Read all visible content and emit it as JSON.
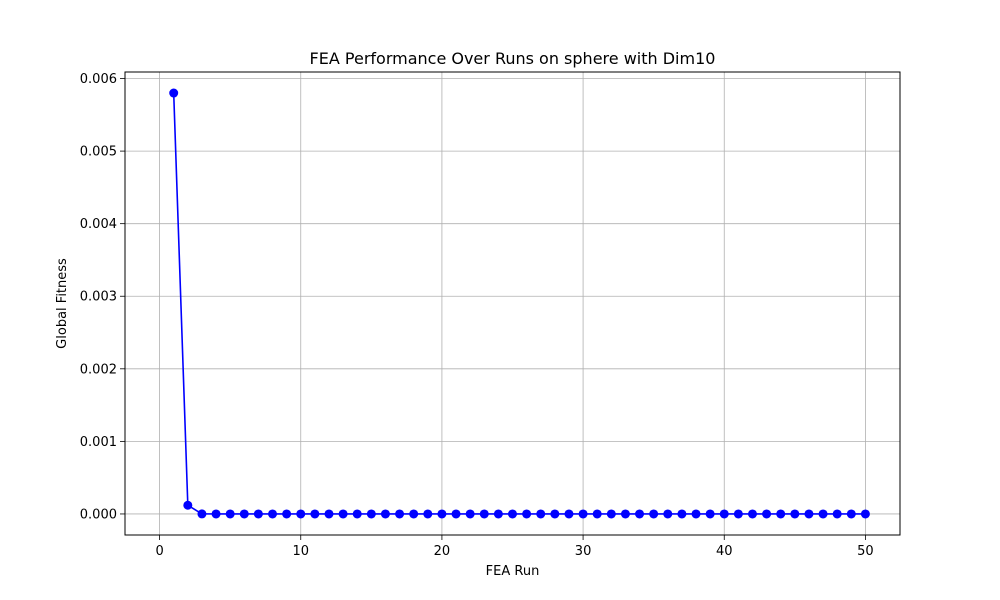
{
  "chart_data": {
    "type": "line",
    "title": "FEA Performance Over Runs on sphere with Dim10",
    "xlabel": "FEA Run",
    "ylabel": "Global Fitness",
    "xlim": [
      -2.45,
      52.45
    ],
    "ylim": [
      -0.00029,
      0.00609
    ],
    "x_ticks": [
      0,
      10,
      20,
      30,
      40,
      50
    ],
    "x_tick_labels": [
      "0",
      "10",
      "20",
      "30",
      "40",
      "50"
    ],
    "y_ticks": [
      0.0,
      0.001,
      0.002,
      0.003,
      0.004,
      0.005,
      0.006
    ],
    "y_tick_labels": [
      "0.000",
      "0.001",
      "0.002",
      "0.003",
      "0.004",
      "0.005",
      "0.006"
    ],
    "grid": true,
    "marker": "circle",
    "line_color": "#0000ff",
    "series": [
      {
        "x": [
          1,
          2,
          3,
          4,
          5,
          6,
          7,
          8,
          9,
          10,
          11,
          12,
          13,
          14,
          15,
          16,
          17,
          18,
          19,
          20,
          21,
          22,
          23,
          24,
          25,
          26,
          27,
          28,
          29,
          30,
          31,
          32,
          33,
          34,
          35,
          36,
          37,
          38,
          39,
          40,
          41,
          42,
          43,
          44,
          45,
          46,
          47,
          48,
          49,
          50
        ],
        "values": [
          0.0058,
          0.00012,
          1e-06,
          0,
          0,
          0,
          0,
          0,
          0,
          0,
          0,
          0,
          0,
          0,
          0,
          0,
          0,
          0,
          0,
          0,
          0,
          0,
          0,
          0,
          0,
          0,
          0,
          0,
          0,
          0,
          0,
          0,
          0,
          0,
          0,
          0,
          0,
          0,
          0,
          0,
          0,
          0,
          0,
          0,
          0,
          0,
          0,
          0,
          0,
          0
        ]
      }
    ]
  }
}
